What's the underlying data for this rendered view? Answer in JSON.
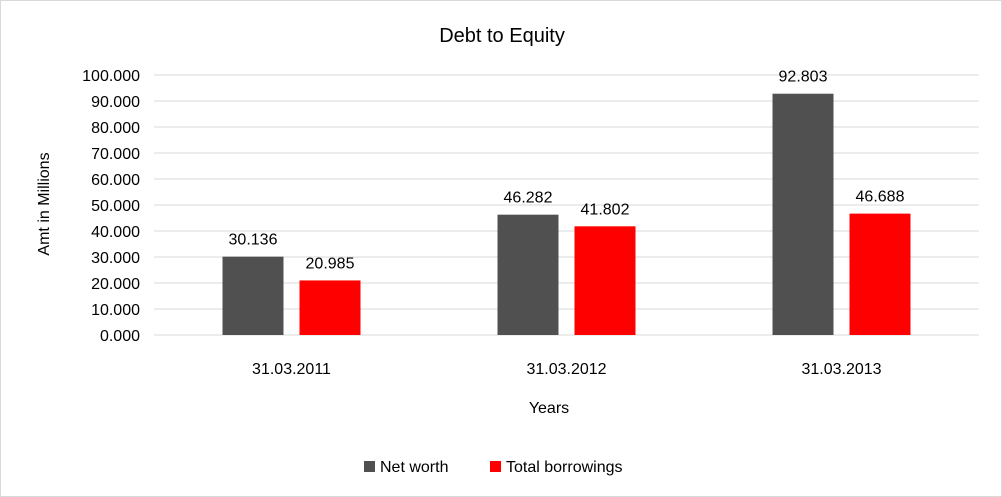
{
  "chart_data": {
    "type": "bar",
    "title": "Debt to Equity",
    "xlabel": "Years",
    "ylabel": "Amt in Millions",
    "categories": [
      "31.03.2011",
      "31.03.2012",
      "31.03.2013"
    ],
    "series": [
      {
        "name": "Net worth",
        "color": "#505050",
        "values": [
          30.136,
          46.282,
          92.803
        ],
        "labels": [
          "30.136",
          "46.282",
          "92.803"
        ]
      },
      {
        "name": "Total borrowings",
        "color": "#ff0000",
        "values": [
          20.985,
          41.802,
          46.688
        ],
        "labels": [
          "20.985",
          "41.802",
          "46.688"
        ]
      }
    ],
    "ylim": [
      0,
      100
    ],
    "yticks": [
      "0.000",
      "10.000",
      "20.000",
      "30.000",
      "40.000",
      "50.000",
      "60.000",
      "70.000",
      "80.000",
      "90.000",
      "100.000"
    ],
    "grid": true,
    "legend_position": "bottom"
  }
}
